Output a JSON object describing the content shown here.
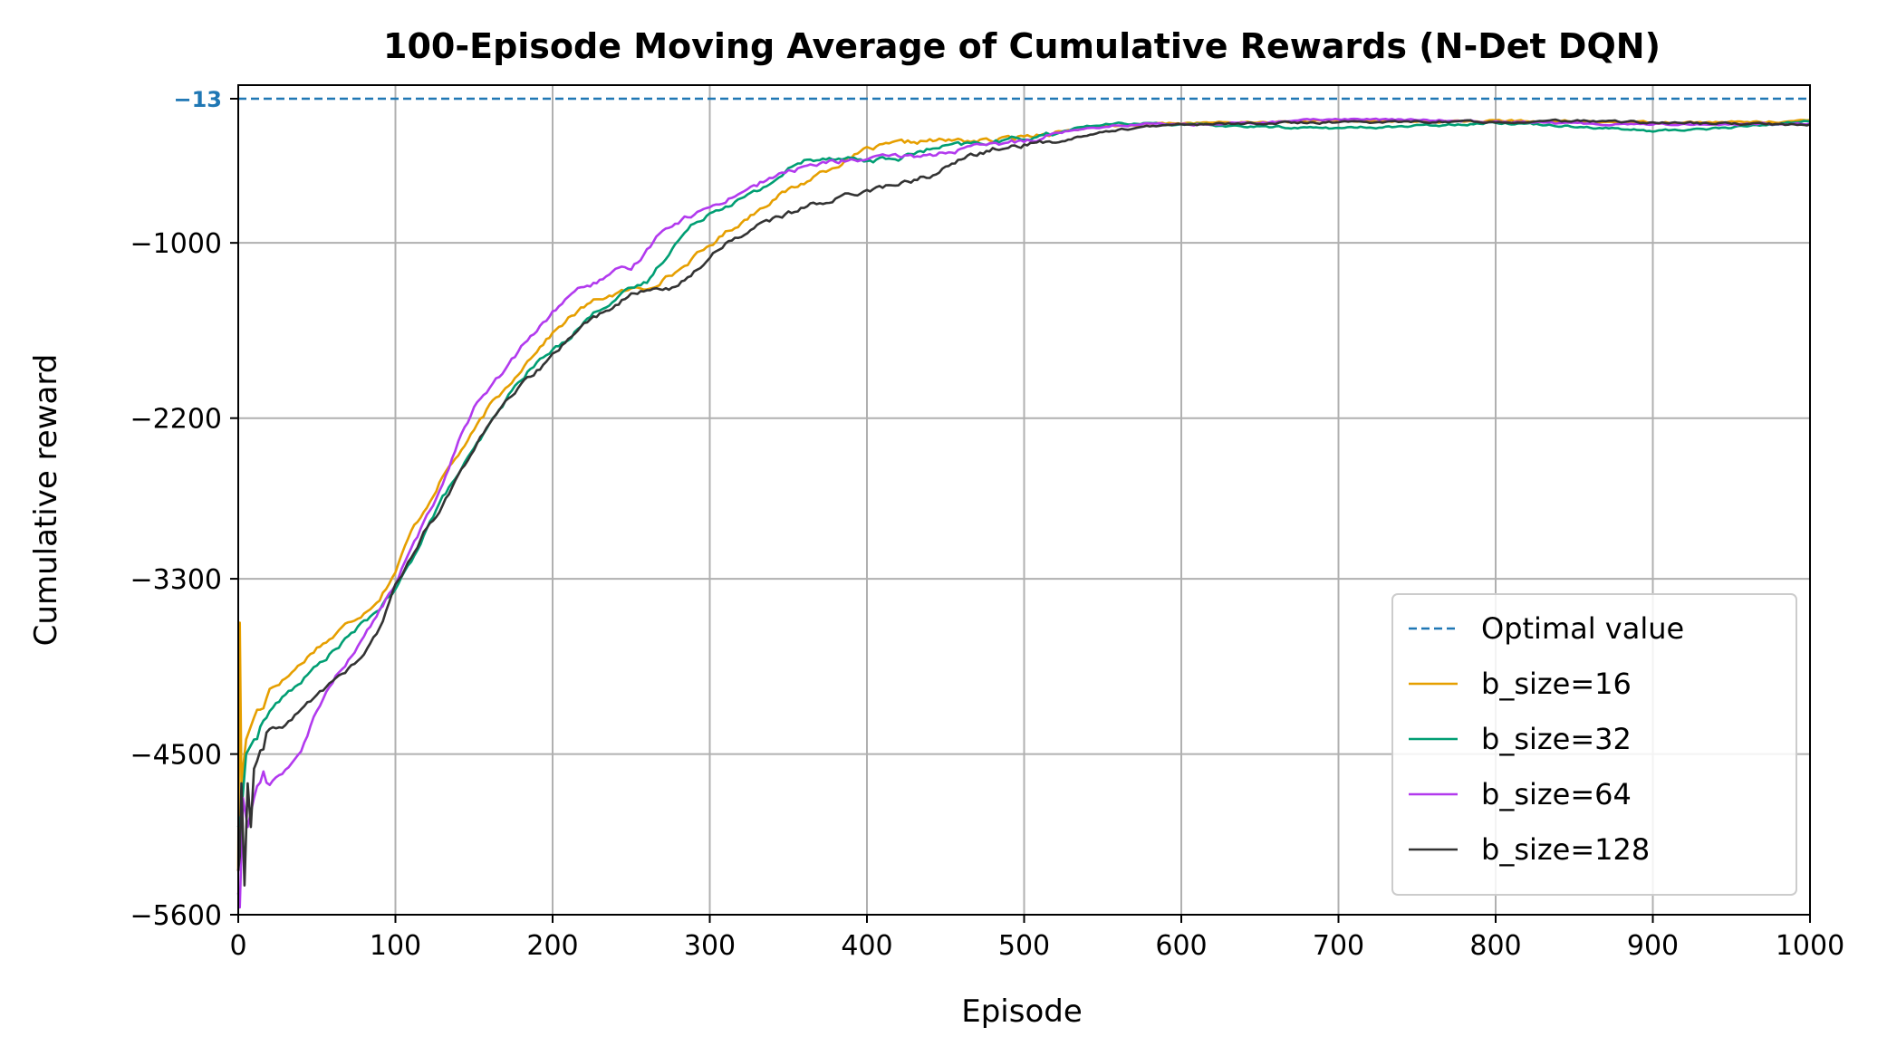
{
  "chart_data": {
    "type": "line",
    "title": "100-Episode Moving Average of Cumulative Rewards (N-Det DQN)",
    "xlabel": "Episode",
    "ylabel": "Cumulative reward",
    "xlim": [
      0,
      1000
    ],
    "ylim": [
      -5600,
      80
    ],
    "xticks": [
      0,
      100,
      200,
      300,
      400,
      500,
      600,
      700,
      800,
      900,
      1000
    ],
    "yticks": [
      -5600,
      -4500,
      -3300,
      -2200,
      -1000
    ],
    "grid": true,
    "legend_position": "lower-right",
    "reference_line": {
      "name": "Optimal value",
      "value": -13,
      "label": "−13",
      "color": "#1f77b4",
      "style": "dashed"
    },
    "series": [
      {
        "name": "b_size=16",
        "color": "#e69f00",
        "x": [
          0,
          1,
          2,
          5,
          10,
          15,
          20,
          30,
          40,
          50,
          60,
          70,
          80,
          90,
          100,
          110,
          120,
          130,
          140,
          150,
          160,
          170,
          180,
          190,
          200,
          210,
          220,
          230,
          240,
          250,
          260,
          270,
          280,
          290,
          300,
          310,
          320,
          330,
          340,
          350,
          360,
          370,
          380,
          390,
          400,
          420,
          440,
          460,
          480,
          500,
          520,
          540,
          560,
          580,
          600,
          650,
          700,
          750,
          800,
          850,
          900,
          950,
          1000
        ],
        "y": [
          -5300,
          -3600,
          -4700,
          -4400,
          -4250,
          -4150,
          -4050,
          -3980,
          -3880,
          -3770,
          -3700,
          -3600,
          -3530,
          -3430,
          -3250,
          -2980,
          -2800,
          -2600,
          -2450,
          -2290,
          -2120,
          -2000,
          -1860,
          -1730,
          -1620,
          -1520,
          -1440,
          -1380,
          -1350,
          -1320,
          -1310,
          -1250,
          -1190,
          -1100,
          -1020,
          -930,
          -860,
          -780,
          -700,
          -640,
          -590,
          -520,
          -470,
          -420,
          -360,
          -320,
          -300,
          -300,
          -300,
          -270,
          -240,
          -215,
          -200,
          -185,
          -180,
          -175,
          -165,
          -170,
          -165,
          -170,
          -175,
          -175,
          -165
        ]
      },
      {
        "name": "b_size=32",
        "color": "#009e73",
        "x": [
          0,
          2,
          5,
          10,
          15,
          20,
          30,
          40,
          50,
          60,
          70,
          80,
          90,
          100,
          110,
          120,
          130,
          140,
          150,
          160,
          170,
          180,
          190,
          200,
          210,
          220,
          230,
          240,
          250,
          260,
          270,
          280,
          290,
          300,
          310,
          320,
          330,
          340,
          350,
          360,
          370,
          380,
          390,
          400,
          420,
          440,
          460,
          480,
          500,
          520,
          540,
          560,
          580,
          600,
          650,
          700,
          750,
          800,
          850,
          900,
          950,
          1000
        ],
        "y": [
          -5000,
          -4900,
          -4500,
          -4400,
          -4300,
          -4200,
          -4100,
          -4000,
          -3900,
          -3800,
          -3700,
          -3600,
          -3500,
          -3380,
          -3180,
          -2950,
          -2750,
          -2580,
          -2420,
          -2250,
          -2080,
          -1930,
          -1820,
          -1740,
          -1650,
          -1540,
          -1450,
          -1380,
          -1320,
          -1270,
          -1120,
          -980,
          -870,
          -790,
          -740,
          -700,
          -650,
          -580,
          -500,
          -440,
          -420,
          -410,
          -420,
          -440,
          -420,
          -360,
          -330,
          -310,
          -280,
          -250,
          -200,
          -185,
          -180,
          -190,
          -205,
          -215,
          -200,
          -175,
          -200,
          -235,
          -210,
          -165
        ]
      },
      {
        "name": "b_size=64",
        "color": "#b23aee",
        "x": [
          0,
          1,
          3,
          6,
          10,
          15,
          20,
          30,
          40,
          50,
          60,
          70,
          80,
          90,
          100,
          110,
          120,
          130,
          140,
          150,
          160,
          170,
          180,
          190,
          200,
          210,
          220,
          230,
          240,
          250,
          260,
          270,
          280,
          290,
          300,
          320,
          340,
          360,
          380,
          400,
          420,
          440,
          460,
          480,
          500,
          520,
          540,
          560,
          580,
          600,
          650,
          700,
          750,
          800,
          850,
          900,
          950,
          1000
        ],
        "y": [
          -5450,
          -5550,
          -4800,
          -5000,
          -4800,
          -4650,
          -4700,
          -4600,
          -4500,
          -4200,
          -4000,
          -3850,
          -3700,
          -3520,
          -3330,
          -3100,
          -2880,
          -2650,
          -2350,
          -2130,
          -2000,
          -1870,
          -1720,
          -1600,
          -1480,
          -1360,
          -1300,
          -1260,
          -1200,
          -1180,
          -1050,
          -900,
          -850,
          -800,
          -760,
          -650,
          -550,
          -480,
          -440,
          -430,
          -410,
          -400,
          -360,
          -330,
          -300,
          -250,
          -210,
          -195,
          -185,
          -190,
          -180,
          -150,
          -160,
          -165,
          -185,
          -185,
          -190,
          -180
        ]
      },
      {
        "name": "b_size=128",
        "color": "#333333",
        "x": [
          0,
          1,
          2,
          4,
          6,
          8,
          10,
          15,
          20,
          30,
          40,
          50,
          60,
          70,
          80,
          90,
          100,
          110,
          120,
          130,
          140,
          150,
          160,
          170,
          180,
          190,
          200,
          210,
          220,
          230,
          240,
          250,
          260,
          270,
          280,
          290,
          300,
          310,
          320,
          330,
          340,
          350,
          360,
          370,
          380,
          390,
          400,
          420,
          440,
          460,
          480,
          500,
          520,
          540,
          560,
          580,
          600,
          650,
          700,
          750,
          800,
          850,
          900,
          950,
          1000
        ],
        "y": [
          -5300,
          -5200,
          -4700,
          -5400,
          -4700,
          -5000,
          -4600,
          -4500,
          -4350,
          -4300,
          -4200,
          -4100,
          -4000,
          -3920,
          -3820,
          -3650,
          -3350,
          -3150,
          -2950,
          -2800,
          -2600,
          -2400,
          -2250,
          -2100,
          -1980,
          -1880,
          -1780,
          -1650,
          -1560,
          -1490,
          -1420,
          -1360,
          -1330,
          -1310,
          -1300,
          -1200,
          -1100,
          -1000,
          -950,
          -880,
          -840,
          -800,
          -760,
          -720,
          -700,
          -660,
          -640,
          -600,
          -540,
          -430,
          -360,
          -330,
          -310,
          -260,
          -225,
          -205,
          -190,
          -180,
          -175,
          -170,
          -170,
          -165,
          -175,
          -185,
          -190
        ]
      }
    ]
  }
}
